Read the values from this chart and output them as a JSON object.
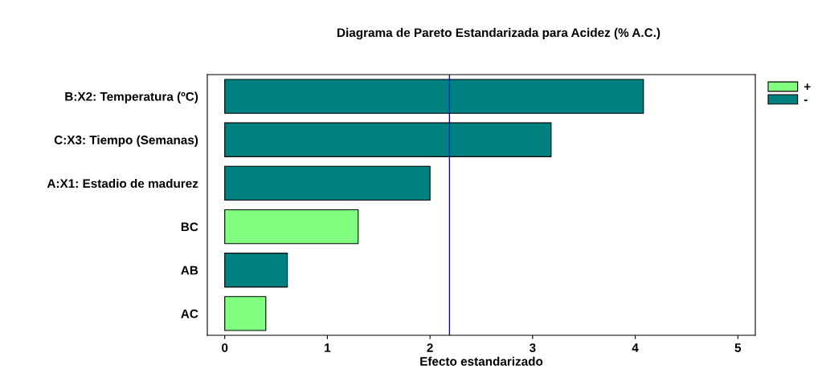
{
  "chart_data": {
    "type": "bar",
    "orientation": "horizontal",
    "title": "Diagrama de Pareto Estandarizada para Acidez (% A.C.)",
    "xlabel": "Efecto estandarizado",
    "categories": [
      "B:X2: Temperatura (ºC)",
      "C:X3: Tiempo (Semanas)",
      "A:X1: Estadio de madurez",
      "BC",
      "AB",
      "AC"
    ],
    "series": [
      {
        "name": "+",
        "color": "#80ff80",
        "values": [
          null,
          null,
          null,
          1.3,
          null,
          0.4
        ]
      },
      {
        "name": "-",
        "color": "#008080",
        "values": [
          4.08,
          3.18,
          2.0,
          null,
          0.61,
          null
        ]
      }
    ],
    "xlim": [
      -0.17,
      5.17
    ],
    "xticks": [
      0,
      1,
      2,
      3,
      4,
      5
    ],
    "ref_lines": [
      {
        "axis": "x",
        "value": 2.19,
        "color": "#0000ff"
      }
    ],
    "legend": "top right",
    "grid": false
  }
}
